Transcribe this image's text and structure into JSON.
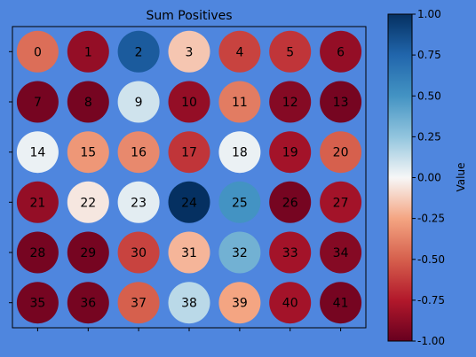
{
  "background_color": "#4f86de",
  "chart_data": {
    "type": "heatmap",
    "title": "Sum Positives",
    "rows": 6,
    "cols": 7,
    "cell_labels": [
      "0",
      "1",
      "2",
      "3",
      "4",
      "5",
      "6",
      "7",
      "8",
      "9",
      "10",
      "11",
      "12",
      "13",
      "14",
      "15",
      "16",
      "17",
      "18",
      "19",
      "20",
      "21",
      "22",
      "23",
      "24",
      "25",
      "26",
      "27",
      "28",
      "29",
      "30",
      "31",
      "32",
      "33",
      "34",
      "35",
      "36",
      "37",
      "38",
      "39",
      "40",
      "41"
    ],
    "values": [
      [
        -0.45,
        -0.85,
        0.8,
        -0.15,
        -0.6,
        -0.65,
        -0.85
      ],
      [
        -0.95,
        -0.95,
        0.1,
        -0.85,
        -0.4,
        -0.9,
        -0.95
      ],
      [
        0.03,
        -0.3,
        -0.35,
        -0.65,
        0.03,
        -0.8,
        -0.5
      ],
      [
        -0.85,
        -0.05,
        0.05,
        1.0,
        0.5,
        -0.95,
        -0.8
      ],
      [
        -0.95,
        -0.95,
        -0.6,
        -0.2,
        0.35,
        -0.8,
        -0.9
      ],
      [
        -0.95,
        -0.95,
        -0.5,
        0.15,
        -0.25,
        -0.8,
        -0.95
      ]
    ],
    "colorbar": {
      "label": "Value",
      "colormap": "RdBu",
      "range": [
        -1.0,
        1.0
      ],
      "ticks": [
        "-1.00",
        "-0.75",
        "-0.50",
        "-0.25",
        "0.00",
        "0.25",
        "0.50",
        "0.75",
        "1.00"
      ]
    },
    "grid": false,
    "x_tick_labels_visible": false,
    "y_tick_labels_visible": false
  }
}
